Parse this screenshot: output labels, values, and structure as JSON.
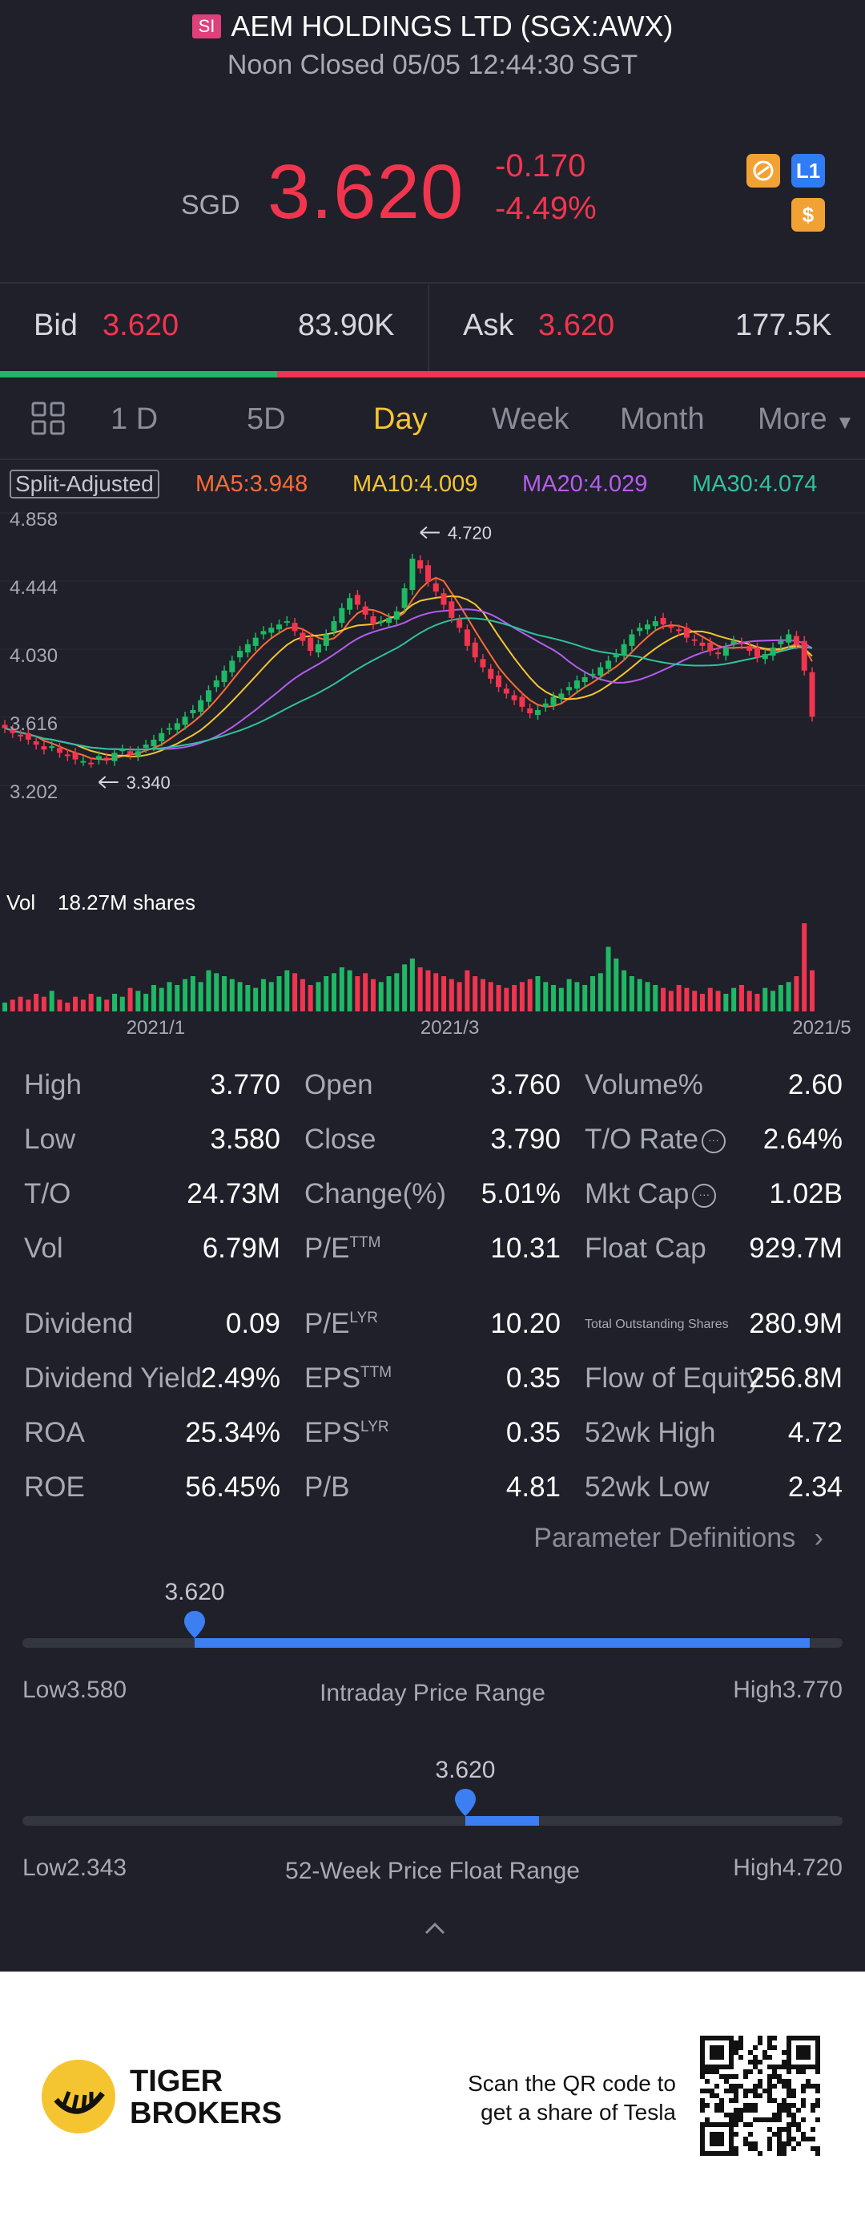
{
  "header": {
    "badge": "SI",
    "title": "AEM HOLDINGS LTD (SGX:AWX)",
    "subtitle": "Noon Closed 05/05 12:44:30 SGT"
  },
  "quote": {
    "currency": "SGD",
    "price": "3.620",
    "change": "-0.170",
    "change_pct": "-4.49%",
    "icons": [
      "trend-icon",
      "level1-icon",
      "dollar-icon"
    ],
    "level_icon_text": "L1",
    "dollar_icon_text": "$"
  },
  "bidask": {
    "bid_label": "Bid",
    "bid_price": "3.620",
    "bid_size": "83.90K",
    "ask_label": "Ask",
    "ask_price": "3.620",
    "ask_size": "177.5K",
    "bid_ratio": 0.32
  },
  "tabs": {
    "items": [
      "1 D",
      "5D",
      "Day",
      "Week",
      "Month",
      "More"
    ],
    "active": "Day"
  },
  "ma": {
    "split_label": "Split-Adjusted",
    "ma5": "MA5:3.948",
    "ma10": "MA10:4.009",
    "ma20": "MA20:4.029",
    "ma30": "MA30:4.074"
  },
  "colors": {
    "up": "#1fb865",
    "down": "#f2354f",
    "ma5": "#ff6b35",
    "ma10": "#f5c531",
    "ma20": "#b65cf0",
    "ma30": "#2fc2a0",
    "accent": "#3b7ff2"
  },
  "chart_data": {
    "type": "candlestick",
    "ylim": [
      3.202,
      4.858
    ],
    "y_ticks": [
      "4.858",
      "4.444",
      "4.030",
      "3.616",
      "3.202"
    ],
    "x_ticks": [
      "2021/1",
      "2021/3",
      "2021/5"
    ],
    "max_label": "4.720",
    "min_label": "3.340",
    "vol_label": "Vol",
    "vol_value": "18.27M shares",
    "closes": [
      3.55,
      3.52,
      3.5,
      3.48,
      3.45,
      3.42,
      3.44,
      3.4,
      3.38,
      3.36,
      3.35,
      3.34,
      3.38,
      3.36,
      3.4,
      3.42,
      3.39,
      3.41,
      3.45,
      3.48,
      3.52,
      3.55,
      3.58,
      3.62,
      3.66,
      3.72,
      3.78,
      3.84,
      3.9,
      3.96,
      4.02,
      4.06,
      4.1,
      4.14,
      4.16,
      4.18,
      4.2,
      4.14,
      4.08,
      4.02,
      4.06,
      4.12,
      4.2,
      4.28,
      4.34,
      4.3,
      4.24,
      4.18,
      4.2,
      4.22,
      4.26,
      4.4,
      4.58,
      4.52,
      4.44,
      4.38,
      4.3,
      4.22,
      4.16,
      4.05,
      3.98,
      3.92,
      3.85,
      3.8,
      3.76,
      3.72,
      3.68,
      3.64,
      3.66,
      3.7,
      3.74,
      3.76,
      3.8,
      3.84,
      3.86,
      3.88,
      3.92,
      3.96,
      4.0,
      4.06,
      4.12,
      4.16,
      4.18,
      4.2,
      4.18,
      4.16,
      4.14,
      4.1,
      4.08,
      4.05,
      4.02,
      4.0,
      4.04,
      4.08,
      4.06,
      4.02,
      3.98,
      4.0,
      4.04,
      4.08,
      4.12,
      4.06,
      3.9,
      3.62
    ],
    "volumes": [
      3,
      4,
      5,
      4,
      6,
      5,
      7,
      4,
      3,
      5,
      4,
      6,
      5,
      4,
      6,
      5,
      8,
      7,
      6,
      9,
      8,
      10,
      9,
      11,
      12,
      10,
      14,
      13,
      12,
      11,
      10,
      9,
      8,
      11,
      10,
      12,
      14,
      13,
      11,
      9,
      10,
      12,
      13,
      15,
      14,
      12,
      13,
      11,
      10,
      12,
      13,
      16,
      18,
      15,
      14,
      13,
      12,
      11,
      10,
      14,
      12,
      11,
      10,
      9,
      8,
      9,
      10,
      11,
      12,
      10,
      9,
      8,
      11,
      10,
      9,
      12,
      13,
      22,
      18,
      14,
      12,
      11,
      10,
      9,
      8,
      7,
      9,
      8,
      7,
      6,
      8,
      7,
      6,
      8,
      9,
      7,
      6,
      8,
      7,
      9,
      10,
      12,
      30,
      14
    ]
  },
  "stats": {
    "col1": [
      {
        "label": "High",
        "value": "3.770"
      },
      {
        "label": "Low",
        "value": "3.580"
      },
      {
        "label": "T/O",
        "value": "24.73M"
      },
      {
        "label": "Vol",
        "value": "6.79M"
      },
      {
        "label": "Dividend",
        "value": "0.09"
      },
      {
        "label": "Dividend Yield",
        "value": "2.49%"
      },
      {
        "label": "ROA",
        "value": "25.34%"
      },
      {
        "label": "ROE",
        "value": "56.45%"
      }
    ],
    "col2": [
      {
        "label": "Open",
        "value": "3.760"
      },
      {
        "label": "Close",
        "value": "3.790"
      },
      {
        "label": "Change(%)",
        "value": "5.01%"
      },
      {
        "label": "P/E",
        "sup": "TTM",
        "value": "10.31"
      },
      {
        "label": "P/E",
        "sup": "LYR",
        "value": "10.20"
      },
      {
        "label": "EPS",
        "sup": "TTM",
        "value": "0.35"
      },
      {
        "label": "EPS",
        "sup": "LYR",
        "value": "0.35"
      },
      {
        "label": "P/B",
        "value": "4.81"
      }
    ],
    "col3": [
      {
        "label": "Volume%",
        "value": "2.60"
      },
      {
        "label": "T/O Rate",
        "value": "2.64%"
      },
      {
        "label": "Mkt Cap",
        "value": "1.02B"
      },
      {
        "label": "Float Cap",
        "value": "929.7M"
      },
      {
        "label": "Total Outstanding Shares",
        "value": "280.9M"
      },
      {
        "label": "Flow of Equity",
        "value": "256.8M"
      },
      {
        "label": "52wk High",
        "value": "4.72"
      },
      {
        "label": "52wk Low",
        "value": "2.34"
      }
    ],
    "param_link": "Parameter Definitions"
  },
  "intraday": {
    "current": "3.620",
    "low_label": "Low3.580",
    "high_label": "High3.770",
    "title": "Intraday Price Range",
    "position": 0.21,
    "fill_start": 0.21,
    "fill_end": 0.96
  },
  "week52": {
    "current": "3.620",
    "low_label": "Low2.343",
    "high_label": "High4.720",
    "title": "52-Week Price Float Range",
    "position": 0.54,
    "fill_start": 0.54,
    "fill_end": 0.63
  },
  "footer": {
    "brand_line1": "TIGER",
    "brand_line2": "BROKERS",
    "scan_line1": "Scan the QR code to",
    "scan_line2": "get a share of Tesla"
  }
}
